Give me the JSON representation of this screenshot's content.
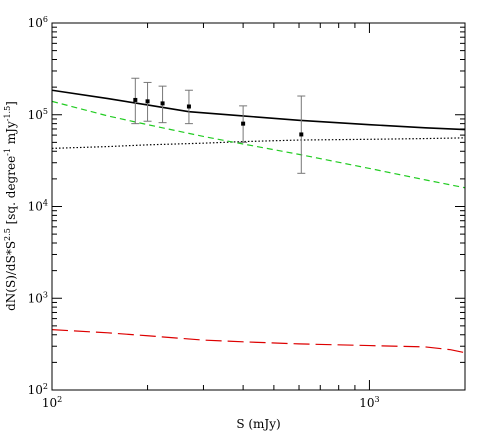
{
  "chart_data": {
    "type": "line",
    "xscale": "log",
    "yscale": "log",
    "xlim": [
      100,
      2000
    ],
    "ylim": [
      100,
      1000000
    ],
    "xlabel": "S (mJy)",
    "ylabel": "dN(S)/dS*S^2.5 [sq. degree^-1 mJy^-1.5]",
    "ylabel_parts": {
      "a": "dN(S)/dS*S",
      "a_sup": "2.5",
      "b": " [sq. degree",
      "b_sup": "-1",
      "c": " mJy",
      "c_sup": "-1.5",
      "d": "]"
    },
    "xticks_major": [
      {
        "value": 100,
        "base": "10",
        "exp": "2"
      },
      {
        "value": 1000,
        "base": "10",
        "exp": "3"
      }
    ],
    "yticks_major": [
      {
        "value": 100,
        "base": "10",
        "exp": "2"
      },
      {
        "value": 1000,
        "base": "10",
        "exp": "3"
      },
      {
        "value": 10000,
        "base": "10",
        "exp": "4"
      },
      {
        "value": 100000,
        "base": "10",
        "exp": "5"
      },
      {
        "value": 1000000,
        "base": "10",
        "exp": "6"
      }
    ],
    "grid": false,
    "series": [
      {
        "style": "solid",
        "color": "#000000",
        "x": [
          100,
          150,
          200,
          270,
          400,
          600,
          1000,
          1500,
          2000
        ],
        "y": [
          185000,
          150000,
          128000,
          108000,
          97000,
          87000,
          78000,
          72000,
          69000
        ]
      },
      {
        "style": "dotted",
        "color": "#000000",
        "x": [
          100,
          150,
          200,
          300,
          400,
          600,
          1000,
          1500,
          2000
        ],
        "y": [
          43000,
          45000,
          47000,
          49000,
          51000,
          53000,
          54000,
          55000,
          56000
        ]
      },
      {
        "style": "dashed",
        "color": "#22cc22",
        "x": [
          100,
          150,
          200,
          300,
          400,
          600,
          1000,
          1500,
          2000
        ],
        "y": [
          140000,
          97000,
          78000,
          58000,
          48000,
          37000,
          26000,
          19500,
          16000
        ]
      },
      {
        "style": "longdash",
        "color": "#dd0000",
        "x": [
          100,
          150,
          200,
          300,
          400,
          600,
          1000,
          1500,
          1800,
          2000
        ],
        "y": [
          455,
          420,
          390,
          350,
          335,
          318,
          305,
          295,
          275,
          255
        ]
      }
    ],
    "points": {
      "marker": "square",
      "color": "#000000",
      "errorbar_color": "#777777",
      "x": [
        183,
        200,
        223,
        270,
        400,
        610
      ],
      "y": [
        145000,
        140000,
        133000,
        123000,
        80000,
        61000
      ],
      "yerr_low": [
        80000,
        85000,
        82000,
        80000,
        50000,
        23000
      ],
      "yerr_high": [
        250000,
        225000,
        205000,
        185000,
        125000,
        160000
      ]
    }
  }
}
